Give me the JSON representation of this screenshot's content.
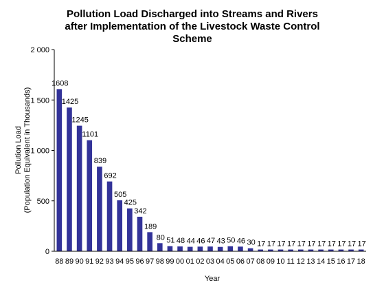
{
  "chart_data": {
    "type": "bar",
    "title_lines": [
      "Pollution Load Discharged into Streams and Rivers",
      "after Implementation of the Livestock Waste Control",
      "Scheme"
    ],
    "xlabel": "Year",
    "ylabel_lines": [
      "Pollution Load",
      "(Population Equivalent in Thousands)"
    ],
    "ylim": [
      0,
      2000
    ],
    "yticks": [
      0,
      500,
      1000,
      1500,
      2000
    ],
    "ytick_labels": [
      "0",
      "500",
      "1 000",
      "1 500",
      "2 000"
    ],
    "categories": [
      "88",
      "89",
      "90",
      "91",
      "92",
      "93",
      "94",
      "95",
      "96",
      "97",
      "98",
      "99",
      "00",
      "01",
      "02",
      "03",
      "04",
      "05",
      "06",
      "07",
      "08",
      "09",
      "10",
      "11",
      "12",
      "13",
      "14",
      "15",
      "16",
      "17",
      "18"
    ],
    "values": [
      1608,
      1425,
      1245,
      1101,
      839,
      692,
      505,
      425,
      342,
      189,
      80,
      51,
      48,
      44,
      46,
      47,
      43,
      50,
      46,
      30,
      17,
      17,
      17,
      17,
      17,
      17,
      17,
      17,
      17,
      17,
      17
    ],
    "value_labels": [
      "1608",
      "1425",
      "1245",
      "1101",
      "839",
      "692",
      "505",
      "425",
      "342",
      "189",
      "80",
      "51",
      "48",
      "44",
      "46",
      "47",
      "43",
      "50",
      "46",
      "30",
      "17",
      "17",
      "17",
      "17",
      "17",
      "17",
      "17",
      "17",
      "17",
      "17",
      "17"
    ],
    "bar_color": "#333399",
    "grid": false,
    "legend": "none"
  }
}
